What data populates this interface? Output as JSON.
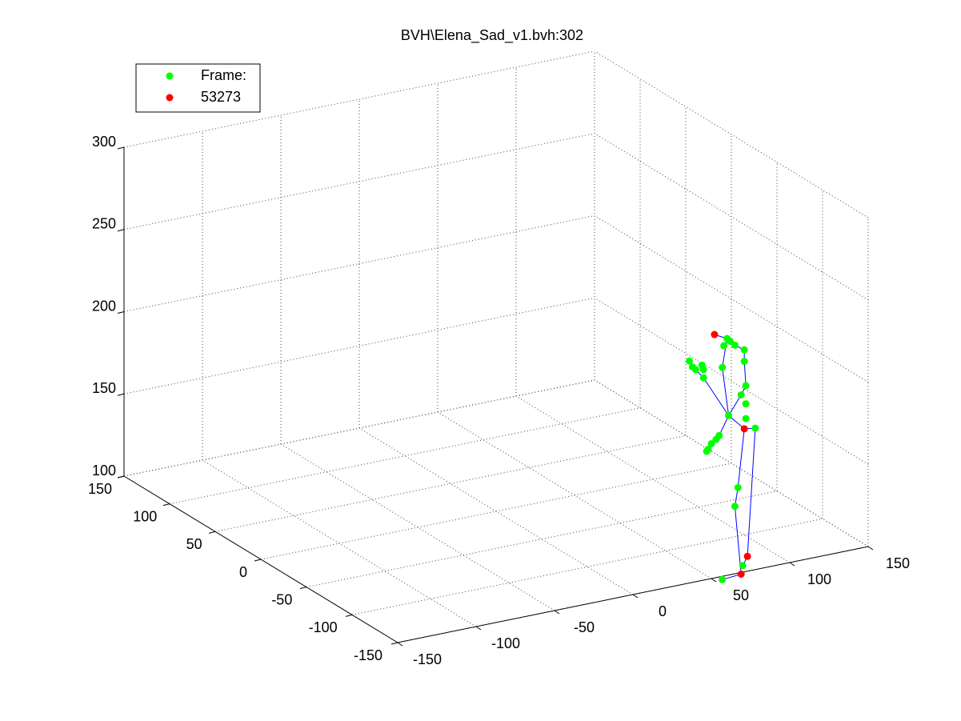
{
  "chart_data": {
    "type": "scatter3d",
    "title": "BVH\\Elena_Sad_v1.bvh:302",
    "xlim": [
      -150,
      150
    ],
    "ylim": [
      -150,
      150
    ],
    "zlim": [
      100,
      300
    ],
    "xticks": [
      -150,
      -100,
      -50,
      0,
      50,
      100,
      150
    ],
    "yticks": [
      -150,
      -100,
      -50,
      0,
      50,
      100,
      150
    ],
    "zticks": [
      100,
      150,
      200,
      250,
      300
    ],
    "grid": true,
    "legend": "northwest",
    "series": [
      {
        "name": "Frame:",
        "color": "#00ff00",
        "x": [
          60,
          62,
          58,
          65,
          71,
          57,
          71,
          72,
          69,
          72,
          72,
          78,
          61,
          45,
          36,
          38,
          40,
          44,
          45,
          55,
          53,
          50,
          48,
          47,
          67,
          65,
          70,
          57
        ],
        "y": [
          -150,
          -150,
          -150,
          -150,
          -150,
          -150,
          -150,
          -150,
          -150,
          -150,
          -150,
          -150,
          -150,
          -150,
          -150,
          -150,
          -150,
          -150,
          -150,
          -150,
          -150,
          -150,
          -150,
          -150,
          -150,
          -150,
          -150,
          -150
        ],
        "z": [
          244,
          242,
          240,
          239,
          235,
          227,
          228,
          213,
          208,
          202,
          193,
          186,
          197,
          223,
          235,
          231,
          229,
          231,
          228,
          186,
          184,
          182,
          179,
          178,
          152,
          141,
          104,
          98
        ]
      },
      {
        "name": "53273",
        "color": "#ff0000",
        "x": [
          52,
          71,
          73,
          69
        ],
        "y": [
          -150,
          -150,
          -150,
          -150
        ],
        "z": [
          248,
          187,
          109,
          99
        ]
      }
    ],
    "lines": {
      "color": "#0000ff",
      "x": [
        71,
        67,
        65,
        69,
        57,
        null,
        71,
        78,
        73,
        70,
        null,
        61,
        71,
        null,
        61,
        57,
        60,
        52,
        null,
        61,
        69,
        72,
        71,
        71,
        65,
        null,
        61,
        45,
        40,
        null,
        55,
        61
      ],
      "y": [
        -150,
        -150,
        -150,
        -150,
        -150,
        null,
        -150,
        -150,
        -150,
        -150,
        null,
        -150,
        -150,
        null,
        -150,
        -150,
        -150,
        -150,
        null,
        -150,
        -150,
        -150,
        -150,
        -150,
        -150,
        null,
        -150,
        -150,
        -150,
        null,
        -150,
        -150
      ],
      "z": [
        187,
        152,
        141,
        99,
        98,
        null,
        187,
        186,
        109,
        104,
        null,
        197,
        187,
        null,
        197,
        227,
        244,
        248,
        null,
        197,
        208,
        213,
        228,
        235,
        239,
        null,
        197,
        223,
        229,
        null,
        186,
        197
      ]
    }
  }
}
